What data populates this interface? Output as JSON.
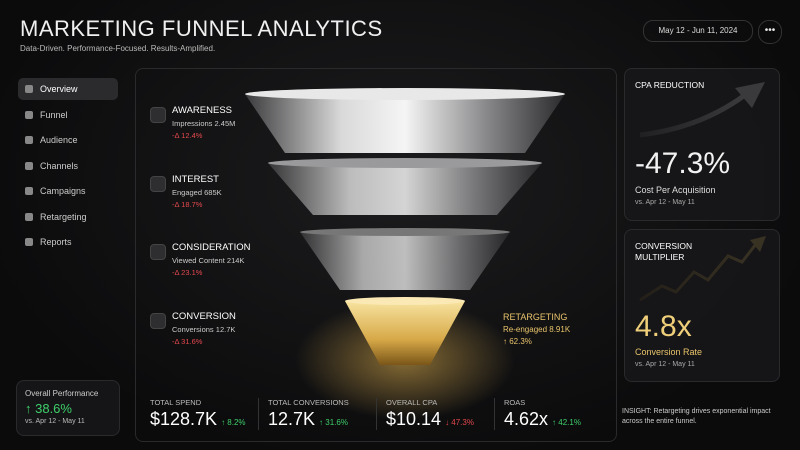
{
  "header": {
    "title": "MARKETING FUNNEL ANALYTICS",
    "subtitle": "Data-Driven. Performance-Focused. Results-Amplified.",
    "date_range": "May 12 - Jun 11, 2024"
  },
  "nav": {
    "items": [
      "Overview",
      "Funnel",
      "Audience",
      "Channels",
      "Campaigns",
      "Retargeting",
      "Reports"
    ]
  },
  "overall": {
    "label": "Overall Performance",
    "value": "↑ 38.6%",
    "period": "vs. Apr 12 - May 11"
  },
  "funnel": {
    "stages": [
      {
        "name": "AWARENESS",
        "metric": "Impressions 2.45M",
        "change": "-Δ 12.4%"
      },
      {
        "name": "INTEREST",
        "metric": "Engaged 685K",
        "change": "-Δ 18.7%"
      },
      {
        "name": "CONSIDERATION",
        "metric": "Viewed Content 214K",
        "change": "-Δ 23.1%"
      },
      {
        "name": "CONVERSION",
        "metric": "Conversions 12.7K",
        "change": "-Δ 31.6%"
      }
    ],
    "retargeting": {
      "name": "RETARGETING",
      "metric": "Re-engaged 8.91K",
      "change": "↑ 62.3%"
    }
  },
  "kpis": [
    {
      "label": "TOTAL SPEND",
      "value": "$128.7K",
      "change": "↑ 8.2%"
    },
    {
      "label": "TOTAL CONVERSIONS",
      "value": "12.7K",
      "change": "↑ 31.6%"
    },
    {
      "label": "OVERALL CPA",
      "value": "$10.14",
      "change": "↓ 47.3%"
    },
    {
      "label": "ROAS",
      "value": "4.62x",
      "change": "↑ 42.1%"
    }
  ],
  "cards": [
    {
      "title": "CPA REDUCTION",
      "value": "-47.3%",
      "label": "Cost Per Acquisition",
      "period": "vs. Apr 12 - May 11"
    },
    {
      "title": "CONVERSION MULTIPLIER",
      "value": "4.8x",
      "label": "Conversion Rate",
      "period": "vs. Apr 12 - May 11"
    }
  ],
  "insight": "INSIGHT: Retargeting drives exponential impact across the entire funnel."
}
